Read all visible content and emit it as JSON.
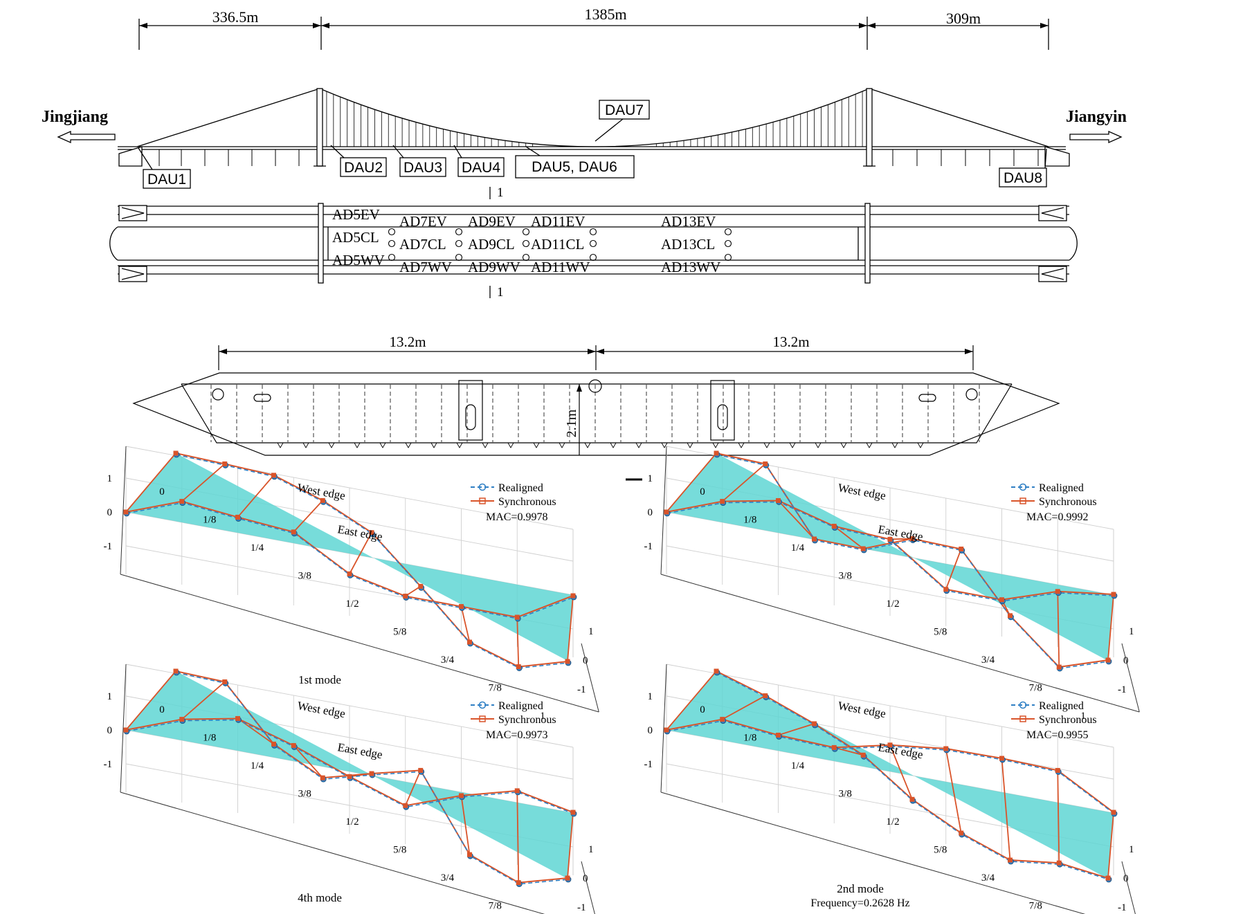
{
  "bridge": {
    "span_labels": [
      "336.5m",
      "1385m",
      "309m"
    ],
    "left_city": "Jingjiang",
    "right_city": "Jiangyin",
    "dau_labels": [
      "DAU1",
      "DAU2",
      "DAU3",
      "DAU4",
      "DAU5, DAU6",
      "DAU7",
      "DAU8"
    ],
    "section_mark": "1"
  },
  "plan": {
    "ev_labels": [
      "AD5EV",
      "AD7EV",
      "AD9EV",
      "AD11EV",
      "AD13EV"
    ],
    "cl_labels": [
      "AD5CL",
      "AD7CL",
      "AD9CL",
      "AD11CL",
      "AD13CL"
    ],
    "wv_labels": [
      "AD5WV",
      "AD7WV",
      "AD9WV",
      "AD11WV",
      "AD13WV"
    ]
  },
  "cross_section": {
    "half_width_labels": [
      "13.2m",
      "13.2m"
    ],
    "depth_label": "2.1m"
  },
  "mode_plots": [
    {
      "title": "1st mode",
      "frequency": "",
      "mac": "MAC=0.9978",
      "legend": [
        "Realigned",
        "Synchronous"
      ],
      "east_edge_label": "East edge",
      "west_edge_label": "West edge",
      "x_ticks": [
        "0",
        "1/8",
        "1/4",
        "3/8",
        "1/2",
        "5/8",
        "3/4",
        "7/8",
        "1"
      ],
      "y_ticks": [
        "1",
        "0",
        "-1"
      ],
      "z_ticks": [
        "1",
        "0",
        "-1"
      ],
      "east": [
        0,
        0.62,
        0.46,
        0.33,
        -0.6,
        -0.95,
        -0.95,
        -0.96,
        -0.02
      ],
      "west": [
        0,
        0.45,
        0.88,
        0.9,
        0.72,
        -0.1,
        -0.98,
        -0.94,
        -0.02
      ]
    },
    {
      "title": "",
      "frequency": "",
      "mac": "MAC=0.9992",
      "legend": [
        "Realigned",
        "Synchronous"
      ],
      "east_edge_label": "East edge",
      "west_edge_label": "West edge",
      "x_ticks": [
        "0",
        "1/8",
        "1/4",
        "3/8",
        "1/2",
        "5/8",
        "3/4",
        "7/8",
        "1"
      ],
      "y_ticks": [
        "1",
        "0",
        "-1"
      ],
      "z_ticks": [
        "1",
        "0",
        "-1"
      ],
      "east": [
        0,
        0.62,
        0.95,
        0.5,
        0.42,
        -0.75,
        -0.75,
        -0.2,
        0.02
      ],
      "west": [
        0,
        0.45,
        -1.0,
        -0.52,
        0.54,
        1.0,
        -0.2,
        -0.95,
        0.02
      ]
    },
    {
      "title": "4th mode",
      "frequency": "",
      "mac": "MAC=0.9973",
      "legend": [
        "Realigned",
        "Synchronous"
      ],
      "east_edge_label": "East edge",
      "west_edge_label": "West edge",
      "x_ticks": [
        "0",
        "1/8",
        "1/4",
        "3/8",
        "1/2",
        "5/8",
        "3/4",
        "7/8",
        "1"
      ],
      "y_ticks": [
        "1",
        "0",
        "-1"
      ],
      "z_ticks": [
        "1",
        "0",
        "-1"
      ],
      "east": [
        0,
        0.62,
        0.95,
        0.46,
        -0.15,
        -0.7,
        -0.1,
        0.35,
        0.02
      ],
      "west": [
        0,
        0.45,
        -0.62,
        -0.85,
        0.04,
        0.9,
        -0.82,
        -0.88,
        0.02
      ]
    },
    {
      "title": "2nd mode",
      "frequency": "Frequency=0.2628 Hz",
      "mac": "MAC=0.9955",
      "legend": [
        "Realigned",
        "Synchronous"
      ],
      "east_edge_label": "East edge",
      "west_edge_label": "West edge",
      "x_ticks": [
        "0",
        "1/8",
        "1/4",
        "3/8",
        "1/2",
        "5/8",
        "3/4",
        "7/8",
        "1"
      ],
      "y_ticks": [
        "1",
        "0",
        "-1"
      ],
      "z_ticks": [
        "1",
        "0",
        "-1"
      ],
      "east": [
        0,
        0.62,
        0.46,
        0.4,
        0.78,
        0.98,
        1.0,
        0.95,
        0.02
      ],
      "west": [
        0,
        0.04,
        -0.02,
        -0.18,
        -0.72,
        -0.95,
        -0.98,
        -0.3,
        0.02
      ]
    }
  ]
}
